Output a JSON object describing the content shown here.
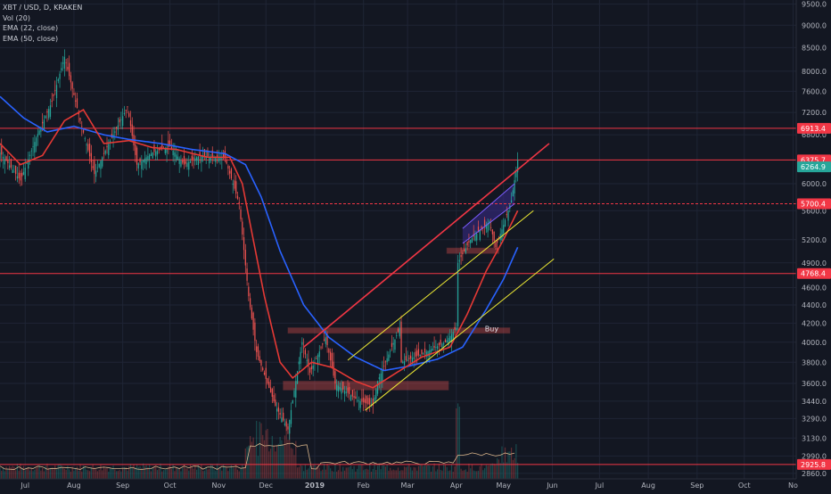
{
  "legend": {
    "symbol": "XBT / USD, D, KRAKEN",
    "vol": "Vol (20)",
    "ema22": "EMA (22, close)",
    "ema50": "EMA (50, close)"
  },
  "colors": {
    "background": "#131722",
    "grid": "#1f2535",
    "axis_text": "#b2b5be",
    "up_candle": "#26a69a",
    "down_candle": "#ef5350",
    "ema22": "#e53935",
    "ema50": "#2962ff",
    "level_line": "#f23645",
    "channel_yellow": "#f0ec34",
    "wedge_red": "#f23645",
    "wedge_fill": "#3b2c8c",
    "current_price": "#26a69a",
    "volume_ma": "#d8b48a"
  },
  "chart_data": {
    "type": "candlestick",
    "x_axis": {
      "ticks": [
        "Jul",
        "Aug",
        "Sep",
        "Oct",
        "Nov",
        "Dec",
        "2019",
        "Feb",
        "Mar",
        "Apr",
        "May",
        "Jun",
        "Jul",
        "Aug",
        "Sep",
        "Oct",
        "No"
      ],
      "range": [
        "2018-06-15",
        "2019-11-03"
      ]
    },
    "y_axis": {
      "scale": "log",
      "range": [
        2820,
        9600
      ],
      "ticks": [
        9500,
        9000,
        8500,
        8000,
        7600,
        7200,
        6800,
        6000,
        5600,
        5200,
        4900,
        4600,
        4400,
        4200,
        4000,
        3800,
        3600,
        3440,
        3290,
        3130,
        2990,
        2860
      ]
    },
    "price_path": [
      [
        "2018-06-15",
        6500
      ],
      [
        "2018-06-28",
        6050
      ],
      [
        "2018-07-08",
        6750
      ],
      [
        "2018-07-18",
        7400
      ],
      [
        "2018-07-26",
        8300
      ],
      [
        "2018-08-05",
        7050
      ],
      [
        "2018-08-14",
        6150
      ],
      [
        "2018-08-24",
        6700
      ],
      [
        "2018-09-04",
        7300
      ],
      [
        "2018-09-10",
        6300
      ],
      [
        "2018-09-20",
        6500
      ],
      [
        "2018-10-01",
        6600
      ],
      [
        "2018-10-10",
        6300
      ],
      [
        "2018-10-20",
        6450
      ],
      [
        "2018-11-05",
        6400
      ],
      [
        "2018-11-14",
        5700
      ],
      [
        "2018-11-20",
        4500
      ],
      [
        "2018-11-25",
        3900
      ],
      [
        "2018-12-07",
        3400
      ],
      [
        "2018-12-15",
        3200
      ],
      [
        "2018-12-24",
        4000
      ],
      [
        "2018-12-29",
        3700
      ],
      [
        "2019-01-08",
        4050
      ],
      [
        "2019-01-14",
        3600
      ],
      [
        "2019-01-28",
        3450
      ],
      [
        "2019-02-07",
        3400
      ],
      [
        "2019-02-10",
        3620
      ],
      [
        "2019-02-24",
        4150
      ],
      [
        "2019-02-25",
        3800
      ],
      [
        "2019-03-10",
        3880
      ],
      [
        "2019-03-25",
        4000
      ],
      [
        "2019-04-01",
        4150
      ],
      [
        "2019-04-02",
        4900
      ],
      [
        "2019-04-10",
        5200
      ],
      [
        "2019-04-22",
        5450
      ],
      [
        "2019-04-26",
        5100
      ],
      [
        "2019-05-01",
        5400
      ],
      [
        "2019-05-06",
        5750
      ],
      [
        "2019-05-10",
        6375
      ]
    ],
    "ema22_path": [
      [
        "2018-06-15",
        6650
      ],
      [
        "2018-06-28",
        6300
      ],
      [
        "2018-07-12",
        6450
      ],
      [
        "2018-07-26",
        7050
      ],
      [
        "2018-08-07",
        7250
      ],
      [
        "2018-08-20",
        6650
      ],
      [
        "2018-09-05",
        6700
      ],
      [
        "2018-09-20",
        6580
      ],
      [
        "2018-10-05",
        6550
      ],
      [
        "2018-10-25",
        6420
      ],
      [
        "2018-11-08",
        6420
      ],
      [
        "2018-11-16",
        6000
      ],
      [
        "2018-11-22",
        5300
      ],
      [
        "2018-11-30",
        4500
      ],
      [
        "2018-12-10",
        3800
      ],
      [
        "2018-12-18",
        3650
      ],
      [
        "2018-12-30",
        3800
      ],
      [
        "2019-01-12",
        3750
      ],
      [
        "2019-01-27",
        3620
      ],
      [
        "2019-02-07",
        3560
      ],
      [
        "2019-02-22",
        3700
      ],
      [
        "2019-03-10",
        3850
      ],
      [
        "2019-03-28",
        3950
      ],
      [
        "2019-04-08",
        4300
      ],
      [
        "2019-04-20",
        4800
      ],
      [
        "2019-05-01",
        5200
      ],
      [
        "2019-05-10",
        5600
      ]
    ],
    "ema50_path": [
      [
        "2018-06-15",
        7500
      ],
      [
        "2018-06-30",
        7100
      ],
      [
        "2018-07-15",
        6850
      ],
      [
        "2018-08-01",
        6950
      ],
      [
        "2018-08-20",
        6800
      ],
      [
        "2018-09-05",
        6720
      ],
      [
        "2018-09-25",
        6650
      ],
      [
        "2018-10-15",
        6550
      ],
      [
        "2018-11-05",
        6480
      ],
      [
        "2018-11-18",
        6300
      ],
      [
        "2018-11-28",
        5800
      ],
      [
        "2018-12-10",
        5050
      ],
      [
        "2018-12-25",
        4400
      ],
      [
        "2019-01-10",
        4050
      ],
      [
        "2019-01-27",
        3850
      ],
      [
        "2019-02-14",
        3720
      ],
      [
        "2019-03-01",
        3760
      ],
      [
        "2019-03-20",
        3830
      ],
      [
        "2019-04-05",
        3950
      ],
      [
        "2019-04-20",
        4350
      ],
      [
        "2019-05-01",
        4700
      ],
      [
        "2019-05-10",
        5100
      ]
    ],
    "horizontal_levels": [
      {
        "price": 6913.4,
        "label": "6913.4",
        "style": "solid"
      },
      {
        "price": 6375.7,
        "label": "6375.7",
        "style": "solid"
      },
      {
        "price": 5700.4,
        "label": "5700.4",
        "style": "dashed"
      },
      {
        "price": 4768.4,
        "label": "4768.4",
        "style": "solid"
      },
      {
        "price": 2925.8,
        "label": "2925.8",
        "style": "solid"
      }
    ],
    "current_price": {
      "price": 6264.9,
      "label": "6264.9"
    },
    "zones": [
      {
        "from": "2018-12-12",
        "to": "2019-03-27",
        "low": 3540,
        "high": 3620
      },
      {
        "from": "2018-12-15",
        "to": "2019-05-05",
        "low": 4100,
        "high": 4150,
        "label": "Buy"
      },
      {
        "from": "2019-03-26",
        "to": "2019-04-28",
        "low": 5020,
        "high": 5090
      }
    ],
    "trendlines": [
      {
        "color": "red",
        "from": [
          "2018-12-25",
          3950
        ],
        "to": [
          "2019-05-30",
          6650
        ]
      },
      {
        "color": "yellow",
        "from": [
          "2019-01-22",
          3820
        ],
        "to": [
          "2019-05-20",
          5600
        ]
      },
      {
        "color": "yellow",
        "from": [
          "2019-02-02",
          3360
        ],
        "to": [
          "2019-06-02",
          4950
        ]
      }
    ]
  }
}
